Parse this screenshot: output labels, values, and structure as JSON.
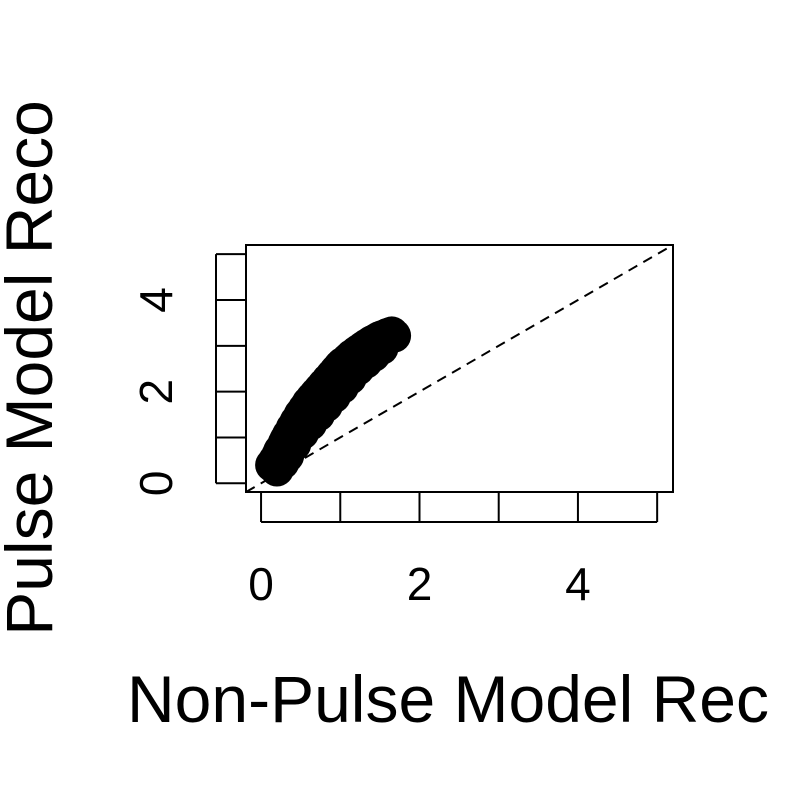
{
  "chart_data": {
    "type": "scatter",
    "xlabel": "Non-Pulse Model Rec",
    "ylabel": "Pulse Model Reco",
    "xlim": [
      -0.19,
      5.2
    ],
    "ylim": [
      -0.19,
      5.2
    ],
    "x_ticks": [
      0,
      1,
      2,
      3,
      4,
      5
    ],
    "x_tick_labels": [
      "0",
      "",
      "2",
      "",
      "4",
      ""
    ],
    "y_ticks": [
      0,
      1,
      2,
      3,
      4,
      5
    ],
    "y_tick_labels": [
      "0",
      "",
      "2",
      "",
      "4",
      ""
    ],
    "reference_line": {
      "slope": 1,
      "intercept": 0,
      "style": "dashed"
    },
    "grid": false,
    "marker": "filled-circle",
    "marker_color": "#000000",
    "series": [
      {
        "x": [
          0.14,
          0.18,
          0.22,
          0.25,
          0.28,
          0.3,
          0.32,
          0.35,
          0.38,
          0.4,
          0.43,
          0.45,
          0.48,
          0.5,
          0.53,
          0.55,
          0.58,
          0.6,
          0.63,
          0.65,
          0.68,
          0.7,
          0.73,
          0.75,
          0.78,
          0.8,
          0.83,
          0.85,
          0.88,
          0.9,
          0.93,
          0.95,
          0.98,
          1.0,
          1.03,
          1.05,
          1.08,
          1.1,
          1.13,
          1.15,
          1.18,
          1.2,
          1.23,
          1.25,
          1.28,
          1.3,
          1.33,
          1.35,
          1.38,
          1.4,
          1.43,
          1.45,
          1.48,
          1.5,
          1.53,
          1.55,
          1.58,
          1.6,
          1.63,
          1.65,
          0.2,
          0.27,
          0.33,
          0.42,
          0.52,
          0.62,
          0.72,
          0.82,
          0.92,
          1.02,
          1.12,
          1.22,
          1.32,
          1.42,
          1.52,
          0.24,
          0.36,
          0.47,
          0.57,
          0.67,
          0.77,
          0.87,
          0.97,
          1.07,
          1.17,
          1.27,
          1.37,
          1.47,
          1.57,
          1.68
        ],
        "y": [
          0.4,
          0.5,
          0.62,
          0.72,
          0.8,
          0.88,
          0.95,
          1.05,
          1.12,
          1.2,
          1.28,
          1.35,
          1.42,
          1.5,
          1.55,
          1.62,
          1.68,
          1.75,
          1.8,
          1.85,
          1.9,
          1.95,
          2.0,
          2.05,
          2.1,
          2.15,
          2.2,
          2.25,
          2.3,
          2.35,
          2.4,
          2.45,
          2.5,
          2.55,
          2.6,
          2.62,
          2.66,
          2.7,
          2.74,
          2.78,
          2.8,
          2.84,
          2.88,
          2.9,
          2.94,
          2.96,
          3.0,
          3.02,
          3.05,
          3.08,
          3.1,
          3.12,
          3.15,
          3.17,
          3.19,
          3.2,
          3.22,
          3.24,
          3.25,
          3.27,
          0.3,
          0.45,
          0.6,
          0.85,
          1.1,
          1.3,
          1.5,
          1.7,
          1.9,
          2.1,
          2.3,
          2.5,
          2.65,
          2.8,
          2.95,
          0.7,
          1.0,
          1.25,
          1.5,
          1.72,
          1.92,
          2.12,
          2.32,
          2.5,
          2.68,
          2.85,
          2.98,
          3.08,
          3.18,
          3.22
        ]
      }
    ]
  }
}
